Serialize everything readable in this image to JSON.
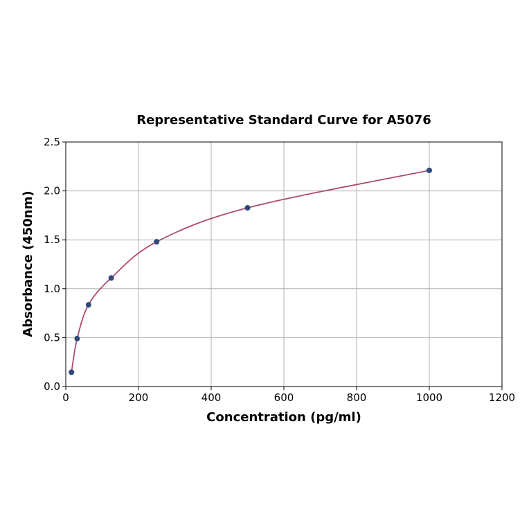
{
  "chart_data": {
    "type": "scatter",
    "title": "Representative Standard Curve for A5076",
    "xlabel": "Concentration (pg/ml)",
    "ylabel": "Absorbance (450nm)",
    "xlim": [
      0,
      1200
    ],
    "ylim": [
      0,
      2.5
    ],
    "xticks": [
      0,
      200,
      400,
      600,
      800,
      1000,
      1200
    ],
    "yticks": [
      0.0,
      0.5,
      1.0,
      1.5,
      2.0,
      2.5
    ],
    "xtick_labels": [
      "0",
      "200",
      "400",
      "600",
      "800",
      "1000",
      "1200"
    ],
    "ytick_labels": [
      "0.0",
      "0.5",
      "1.0",
      "1.5",
      "2.0",
      "2.5"
    ],
    "grid": true,
    "series": [
      {
        "x": [
          15.625,
          31.25,
          62.5,
          125,
          250,
          500,
          1000
        ],
        "y": [
          0.146,
          0.49,
          0.835,
          1.11,
          1.48,
          1.827,
          2.21
        ],
        "marker_color": "#2e4a7a",
        "line_color": "#b0486e",
        "fit_curve": true
      }
    ]
  }
}
